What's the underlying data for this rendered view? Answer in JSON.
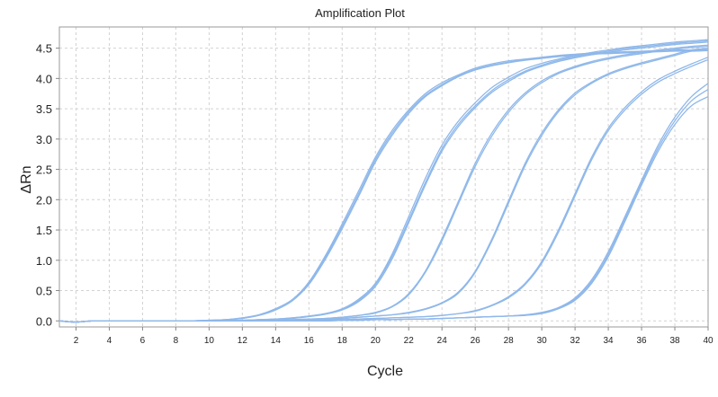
{
  "chart_data": {
    "type": "line",
    "title": "Amplification Plot",
    "xlabel": "Cycle",
    "ylabel": "ΔRn",
    "xlim": [
      1,
      40
    ],
    "ylim": [
      -0.1,
      4.85
    ],
    "x_ticks": [
      2,
      4,
      6,
      8,
      10,
      12,
      14,
      16,
      18,
      20,
      22,
      24,
      26,
      28,
      30,
      32,
      34,
      36,
      38,
      40
    ],
    "y_ticks": [
      0.0,
      0.5,
      1.0,
      1.5,
      2.0,
      2.5,
      3.0,
      3.5,
      4.0,
      4.5
    ],
    "y_tick_labels": [
      "0.0",
      "0.5",
      "1.0",
      "1.5",
      "2.0",
      "2.5",
      "3.0",
      "3.5",
      "4.0",
      "4.5"
    ],
    "grid": true,
    "line_color": "#8fb8ea",
    "x": [
      1,
      2,
      3,
      4,
      5,
      6,
      7,
      8,
      9,
      10,
      11,
      12,
      13,
      14,
      15,
      16,
      17,
      18,
      19,
      20,
      21,
      22,
      23,
      24,
      25,
      26,
      27,
      28,
      29,
      30,
      31,
      32,
      33,
      34,
      35,
      36,
      37,
      38,
      39,
      40
    ],
    "series": [
      {
        "values": [
          0.0,
          -0.02,
          0.0,
          0.0,
          0.0,
          0.0,
          0.0,
          0.0,
          0.0,
          0.01,
          0.02,
          0.05,
          0.1,
          0.2,
          0.35,
          0.64,
          1.08,
          1.6,
          2.15,
          2.7,
          3.14,
          3.48,
          3.75,
          3.93,
          4.06,
          4.17,
          4.24,
          4.29,
          4.32,
          4.35,
          4.38,
          4.4,
          4.42,
          4.43,
          4.44,
          4.45,
          4.46,
          4.47,
          4.47,
          4.48
        ]
      },
      {
        "values": [
          0.0,
          -0.02,
          0.0,
          0.0,
          0.0,
          0.0,
          0.0,
          0.0,
          0.0,
          0.01,
          0.02,
          0.05,
          0.1,
          0.2,
          0.35,
          0.62,
          1.05,
          1.56,
          2.1,
          2.66,
          3.1,
          3.45,
          3.72,
          3.9,
          4.04,
          4.15,
          4.22,
          4.27,
          4.31,
          4.34,
          4.37,
          4.39,
          4.41,
          4.42,
          4.43,
          4.44,
          4.45,
          4.46,
          4.46,
          4.47
        ]
      },
      {
        "values": [
          0.0,
          -0.02,
          0.0,
          0.0,
          0.0,
          0.0,
          0.0,
          0.0,
          0.0,
          0.01,
          0.02,
          0.04,
          0.09,
          0.18,
          0.33,
          0.6,
          1.02,
          1.52,
          2.06,
          2.62,
          3.06,
          3.42,
          3.7,
          3.88,
          4.03,
          4.14,
          4.21,
          4.26,
          4.3,
          4.33,
          4.36,
          4.38,
          4.4,
          4.41,
          4.42,
          4.43,
          4.44,
          4.45,
          4.45,
          4.46
        ]
      },
      {
        "values": [
          0.0,
          -0.02,
          0.0,
          0.0,
          0.0,
          0.0,
          0.0,
          0.0,
          0.0,
          0.0,
          0.01,
          0.01,
          0.02,
          0.03,
          0.05,
          0.08,
          0.12,
          0.2,
          0.36,
          0.62,
          1.1,
          1.72,
          2.35,
          2.9,
          3.3,
          3.6,
          3.85,
          4.02,
          4.16,
          4.25,
          4.32,
          4.38,
          4.43,
          4.47,
          4.51,
          4.54,
          4.57,
          4.6,
          4.62,
          4.64
        ]
      },
      {
        "values": [
          0.0,
          -0.02,
          0.0,
          0.0,
          0.0,
          0.0,
          0.0,
          0.0,
          0.0,
          0.0,
          0.01,
          0.01,
          0.02,
          0.03,
          0.05,
          0.08,
          0.12,
          0.19,
          0.34,
          0.6,
          1.06,
          1.66,
          2.28,
          2.84,
          3.25,
          3.55,
          3.8,
          3.98,
          4.12,
          4.22,
          4.3,
          4.36,
          4.41,
          4.45,
          4.49,
          4.52,
          4.55,
          4.58,
          4.6,
          4.62
        ]
      },
      {
        "values": [
          0.0,
          -0.02,
          0.0,
          0.0,
          0.0,
          0.0,
          0.0,
          0.0,
          0.0,
          0.0,
          0.01,
          0.01,
          0.02,
          0.03,
          0.04,
          0.07,
          0.11,
          0.18,
          0.32,
          0.57,
          1.02,
          1.62,
          2.24,
          2.8,
          3.21,
          3.52,
          3.77,
          3.95,
          4.1,
          4.2,
          4.28,
          4.34,
          4.39,
          4.43,
          4.47,
          4.5,
          4.53,
          4.56,
          4.58,
          4.6
        ]
      },
      {
        "values": [
          0.0,
          -0.02,
          0.0,
          0.0,
          0.0,
          0.0,
          0.0,
          0.0,
          0.0,
          0.0,
          0.0,
          0.0,
          0.01,
          0.01,
          0.02,
          0.03,
          0.04,
          0.06,
          0.09,
          0.14,
          0.24,
          0.45,
          0.82,
          1.36,
          1.98,
          2.6,
          3.1,
          3.48,
          3.76,
          3.96,
          4.1,
          4.2,
          4.28,
          4.34,
          4.39,
          4.43,
          4.47,
          4.5,
          4.53,
          4.55
        ]
      },
      {
        "values": [
          0.0,
          -0.02,
          0.0,
          0.0,
          0.0,
          0.0,
          0.0,
          0.0,
          0.0,
          0.0,
          0.0,
          0.0,
          0.01,
          0.01,
          0.02,
          0.03,
          0.04,
          0.06,
          0.09,
          0.13,
          0.23,
          0.43,
          0.8,
          1.32,
          1.94,
          2.55,
          3.05,
          3.44,
          3.73,
          3.93,
          4.08,
          4.18,
          4.26,
          4.32,
          4.37,
          4.41,
          4.45,
          4.48,
          4.51,
          4.53
        ]
      },
      {
        "values": [
          0.0,
          -0.02,
          0.0,
          0.0,
          0.0,
          0.0,
          0.0,
          0.0,
          0.0,
          0.0,
          0.0,
          0.0,
          0.0,
          0.01,
          0.01,
          0.02,
          0.03,
          0.04,
          0.06,
          0.08,
          0.1,
          0.14,
          0.2,
          0.3,
          0.48,
          0.82,
          1.35,
          1.98,
          2.6,
          3.1,
          3.48,
          3.76,
          3.94,
          4.08,
          4.18,
          4.26,
          4.33,
          4.4,
          4.47,
          4.5
        ]
      },
      {
        "values": [
          0.0,
          -0.02,
          0.0,
          0.0,
          0.0,
          0.0,
          0.0,
          0.0,
          0.0,
          0.0,
          0.0,
          0.0,
          0.0,
          0.01,
          0.01,
          0.02,
          0.03,
          0.04,
          0.06,
          0.08,
          0.1,
          0.13,
          0.19,
          0.29,
          0.46,
          0.8,
          1.32,
          1.94,
          2.56,
          3.06,
          3.45,
          3.73,
          3.92,
          4.06,
          4.16,
          4.24,
          4.31,
          4.38,
          4.45,
          4.48
        ]
      },
      {
        "values": [
          0.0,
          -0.02,
          0.0,
          0.0,
          0.0,
          0.0,
          0.0,
          0.0,
          0.0,
          0.0,
          0.0,
          0.0,
          0.0,
          0.0,
          0.01,
          0.01,
          0.02,
          0.02,
          0.03,
          0.04,
          0.05,
          0.06,
          0.07,
          0.09,
          0.12,
          0.17,
          0.26,
          0.4,
          0.62,
          0.98,
          1.5,
          2.1,
          2.7,
          3.18,
          3.52,
          3.78,
          3.98,
          4.12,
          4.24,
          4.35
        ]
      },
      {
        "values": [
          0.0,
          -0.02,
          0.0,
          0.0,
          0.0,
          0.0,
          0.0,
          0.0,
          0.0,
          0.0,
          0.0,
          0.0,
          0.0,
          0.0,
          0.01,
          0.01,
          0.02,
          0.02,
          0.03,
          0.04,
          0.05,
          0.06,
          0.07,
          0.09,
          0.12,
          0.16,
          0.25,
          0.38,
          0.6,
          0.95,
          1.46,
          2.06,
          2.66,
          3.14,
          3.48,
          3.74,
          3.94,
          4.08,
          4.2,
          4.31
        ]
      },
      {
        "values": [
          0.0,
          -0.02,
          0.0,
          0.0,
          0.0,
          0.0,
          0.0,
          0.0,
          0.0,
          0.0,
          0.0,
          0.0,
          0.0,
          0.0,
          0.0,
          0.0,
          0.0,
          0.01,
          0.01,
          0.02,
          0.02,
          0.03,
          0.03,
          0.04,
          0.05,
          0.06,
          0.07,
          0.08,
          0.1,
          0.14,
          0.22,
          0.38,
          0.68,
          1.14,
          1.72,
          2.32,
          2.9,
          3.36,
          3.7,
          3.92
        ]
      },
      {
        "values": [
          0.0,
          -0.02,
          0.0,
          0.0,
          0.0,
          0.0,
          0.0,
          0.0,
          0.0,
          0.0,
          0.0,
          0.0,
          0.0,
          0.0,
          0.0,
          0.0,
          0.0,
          0.01,
          0.01,
          0.02,
          0.02,
          0.03,
          0.03,
          0.04,
          0.05,
          0.06,
          0.07,
          0.08,
          0.1,
          0.13,
          0.21,
          0.36,
          0.65,
          1.1,
          1.68,
          2.28,
          2.85,
          3.3,
          3.63,
          3.82
        ]
      },
      {
        "values": [
          0.0,
          -0.02,
          0.0,
          0.0,
          0.0,
          0.0,
          0.0,
          0.0,
          0.0,
          0.0,
          0.0,
          0.0,
          0.0,
          0.0,
          0.0,
          0.0,
          0.0,
          0.01,
          0.01,
          0.02,
          0.02,
          0.03,
          0.03,
          0.04,
          0.05,
          0.06,
          0.07,
          0.08,
          0.09,
          0.12,
          0.2,
          0.34,
          0.62,
          1.06,
          1.64,
          2.24,
          2.8,
          3.24,
          3.55,
          3.7
        ]
      }
    ]
  }
}
